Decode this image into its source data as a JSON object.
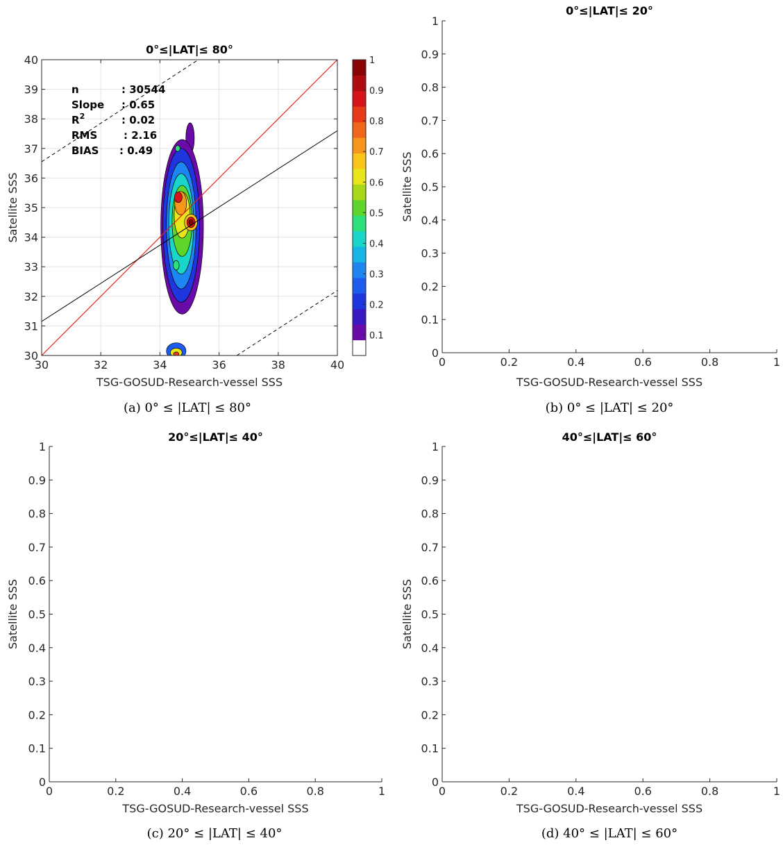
{
  "chart_data": [
    {
      "id": "a",
      "type": "heatmap",
      "title": "0°≤|LAT|≤ 80°",
      "caption": "(a) 0° ≤ |LAT| ≤ 80°",
      "xlabel": "TSG-GOSUD-Research-vessel SSS",
      "ylabel": "Satellite SSS",
      "xlim": [
        30,
        40
      ],
      "ylim": [
        30,
        40
      ],
      "xticks": [
        "30",
        "32",
        "34",
        "36",
        "38",
        "40"
      ],
      "yticks": [
        "30",
        "31",
        "32",
        "33",
        "34",
        "35",
        "36",
        "37",
        "38",
        "39",
        "40"
      ],
      "grid": true,
      "stats": [
        {
          "label": "n",
          "value": ": 30544"
        },
        {
          "label": "Slope",
          "value": ": 0.65"
        },
        {
          "label": "R",
          "sup": "2",
          "value": ": 0.02"
        },
        {
          "label": "RMS",
          "value": ": 2.16"
        },
        {
          "label": "BIAS",
          "value": ": 0.49"
        }
      ],
      "lines": {
        "one_to_one": {
          "color": "#e8231f",
          "x": [
            30,
            40
          ],
          "y": [
            30,
            40
          ]
        },
        "regression": {
          "color": "#000000",
          "x": [
            30,
            40
          ],
          "y": [
            31.15,
            37.6
          ]
        },
        "upper_bound": {
          "style": "dashed",
          "x": [
            30,
            35.3
          ],
          "y": [
            36.55,
            40
          ]
        },
        "lower_bound": {
          "style": "dashed",
          "x": [
            36.6,
            40
          ],
          "y": [
            30,
            32.2
          ]
        }
      },
      "colorbar": {
        "ticks": [
          "0.1",
          "0.2",
          "0.3",
          "0.4",
          "0.5",
          "0.6",
          "0.7",
          "0.8",
          "0.9",
          "1"
        ],
        "colors": [
          "#ffffff",
          "#6a0aa8",
          "#3a18c4",
          "#1f36de",
          "#1e5cf0",
          "#1e86f0",
          "#17b4e6",
          "#19d6c8",
          "#2ee07a",
          "#5fd42a",
          "#a8d818",
          "#e8e61a",
          "#fbc418",
          "#f6961a",
          "#f0661a",
          "#e83a18",
          "#d6141a",
          "#b00c10",
          "#8a0406"
        ]
      }
    },
    {
      "id": "b",
      "type": "scatter",
      "title": "0°≤|LAT|≤ 20°",
      "caption": "(b) 0° ≤ |LAT| ≤ 20°",
      "xlabel": "TSG-GOSUD-Research-vessel SSS",
      "ylabel": "Satellite SSS",
      "xlim": [
        0,
        1
      ],
      "ylim": [
        0,
        1
      ],
      "xticks": [
        "0",
        "0.2",
        "0.4",
        "0.6",
        "0.8",
        "1"
      ],
      "yticks": [
        "0",
        "0.1",
        "0.2",
        "0.3",
        "0.4",
        "0.5",
        "0.6",
        "0.7",
        "0.8",
        "0.9",
        "1"
      ],
      "series": []
    },
    {
      "id": "c",
      "type": "scatter",
      "title": "20°≤|LAT|≤ 40°",
      "caption": "(c) 20° ≤ |LAT| ≤ 40°",
      "xlabel": "TSG-GOSUD-Research-vessel SSS",
      "ylabel": "Satellite SSS",
      "xlim": [
        0,
        1
      ],
      "ylim": [
        0,
        1
      ],
      "xticks": [
        "0",
        "0.2",
        "0.4",
        "0.6",
        "0.8",
        "1"
      ],
      "yticks": [
        "0",
        "0.1",
        "0.2",
        "0.3",
        "0.4",
        "0.5",
        "0.6",
        "0.7",
        "0.8",
        "0.9",
        "1"
      ],
      "series": []
    },
    {
      "id": "d",
      "type": "scatter",
      "title": "40°≤|LAT|≤ 60°",
      "caption": "(d) 40° ≤ |LAT| ≤ 60°",
      "xlabel": "TSG-GOSUD-Research-vessel SSS",
      "ylabel": "Satellite SSS",
      "xlim": [
        0,
        1
      ],
      "ylim": [
        0,
        1
      ],
      "xticks": [
        "0",
        "0.2",
        "0.4",
        "0.6",
        "0.8",
        "1"
      ],
      "yticks": [
        "0",
        "0.1",
        "0.2",
        "0.3",
        "0.4",
        "0.5",
        "0.6",
        "0.7",
        "0.8",
        "0.9",
        "1"
      ],
      "series": []
    }
  ]
}
